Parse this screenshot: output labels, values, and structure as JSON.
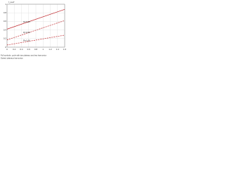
{
  "chart_data": {
    "type": "line",
    "y_label": "f_res/f",
    "x": [
      0,
      1.6
    ],
    "series": [
      {
        "name": "R=0.25",
        "color": "#c0282d",
        "dash": false,
        "values": [
          0.42,
          0.88
        ]
      },
      {
        "name": "R=0.50",
        "color": "#c0282d",
        "dash": true,
        "values": [
          0.17,
          0.62
        ]
      },
      {
        "name": "R=1.00",
        "color": "#c0282d",
        "dash": true,
        "values": [
          0.05,
          0.28
        ]
      }
    ],
    "xlim": [
      0,
      1.6
    ],
    "xticks": [
      0,
      0.2,
      0.4,
      0.6,
      0.8,
      1,
      1.2,
      1.4,
      1.6
    ],
    "ylim": [
      0,
      1
    ],
    "yticks": [
      0,
      0.2,
      0.4,
      0.6,
      0.8,
      1
    ],
    "grid": true,
    "caption": [
      "Full symbols: cycle with two plateaux and two harmonics",
      "Dotted: plateaux harmonics"
    ]
  }
}
